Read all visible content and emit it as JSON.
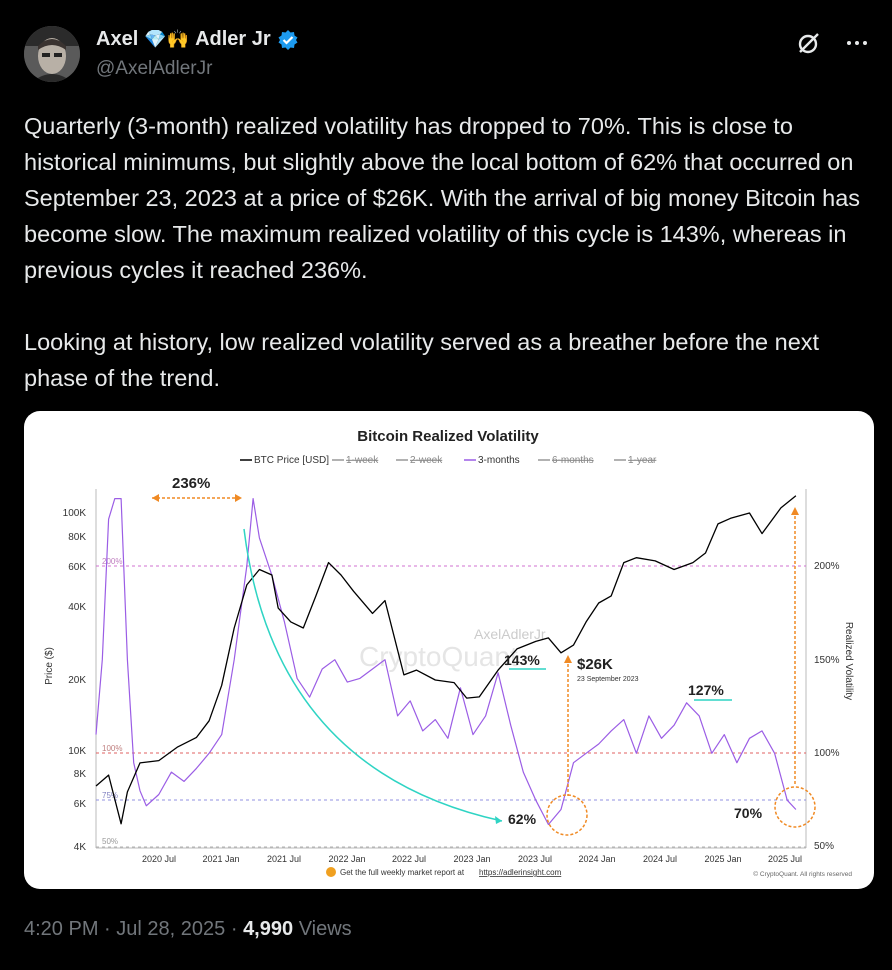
{
  "author": {
    "name": "Axel",
    "name_emoji": "💎🙌",
    "name_suffix": "Adler Jr",
    "handle": "@AxelAdlerJr"
  },
  "icons": [
    "grok-icon",
    "more-icon",
    "verified-badge-icon"
  ],
  "tweet": {
    "text": "Quarterly (3-month) realized volatility has dropped to 70%. This is close to historical minimums, but slightly above the local bottom of 62% that occurred on September 23, 2023 at a price of $26K. With the arrival of big money Bitcoin has become slow. The maximum realized volatility of this cycle is 143%, whereas in previous cycles it reached 236%.\n\nLooking at history, low realized volatility served as a breather before the next phase of the trend."
  },
  "meta": {
    "time": "4:20 PM",
    "sep1": "·",
    "date": "Jul 28, 2025",
    "sep2": "·",
    "views_count": "4,990",
    "views_label": "Views"
  },
  "chart_data": {
    "type": "line",
    "title": "Bitcoin Realized Volatility",
    "legend": [
      "BTC Price [USD]",
      "1-week",
      "2-week",
      "3-months",
      "6-months",
      "1-year"
    ],
    "legend_placement": "top-center",
    "ylabel_left": "Price ($)",
    "ylabel_right": "Realized Volatility",
    "y_left_ticks": [
      "100K",
      "80K",
      "60K",
      "40K",
      "20K",
      "10K",
      "8K",
      "6K",
      "4K"
    ],
    "y_right_ticks": [
      "200%",
      "150%",
      "100%",
      "50%"
    ],
    "x_ticks": [
      "2020 Jul",
      "2021 Jan",
      "2021 Jul",
      "2022 Jan",
      "2022 Jul",
      "2023 Jan",
      "2023 Jul",
      "2024 Jan",
      "2024 Jul",
      "2025 Jan",
      "2025 Jul"
    ],
    "reference_lines": [
      {
        "label": "200%",
        "color": "#d070d0"
      },
      {
        "label": "100%",
        "color": "#e06060"
      },
      {
        "label": "75%",
        "color": "#9090e0"
      },
      {
        "label": "50%",
        "color": "#b0b0b0"
      }
    ],
    "annotations": [
      "236%",
      "143%",
      "$26K",
      "23 September 2023",
      "127%",
      "62%",
      "70%"
    ],
    "footer_text": "Get the full weekly market report at",
    "footer_link": "https://adlerinsight.com",
    "copyright": "© CryptoQuant. All rights reserved",
    "watermark": "AxelAdlerJr",
    "logo_text": "CryptoQuant",
    "colors": {
      "price": "#000000",
      "volatility": "#9b5de5",
      "highlight": "#2fd4c4",
      "marker": "#f08a24"
    },
    "series": [
      {
        "name": "BTC Price [USD]",
        "x": [
          2020.0,
          2020.1,
          2020.2,
          2020.25,
          2020.35,
          2020.5,
          2020.65,
          2020.8,
          2020.9,
          2021.0,
          2021.1,
          2021.2,
          2021.3,
          2021.4,
          2021.45,
          2021.55,
          2021.65,
          2021.75,
          2021.85,
          2021.95,
          2022.05,
          2022.2,
          2022.3,
          2022.45,
          2022.55,
          2022.7,
          2022.85,
          2022.95,
          2023.05,
          2023.2,
          2023.35,
          2023.5,
          2023.6,
          2023.7,
          2023.8,
          2023.9,
          2024.0,
          2024.1,
          2024.2,
          2024.3,
          2024.45,
          2024.6,
          2024.75,
          2024.85,
          2024.95,
          2025.05,
          2025.2,
          2025.3,
          2025.45,
          2025.57
        ],
        "y": [
          7200,
          8000,
          5000,
          6800,
          9000,
          9200,
          10500,
          11500,
          13500,
          19000,
          33000,
          50000,
          58000,
          55000,
          40000,
          35000,
          33000,
          45000,
          62000,
          55000,
          47000,
          38000,
          43000,
          21000,
          22000,
          20000,
          19500,
          16800,
          17000,
          22000,
          27000,
          29000,
          30000,
          26000,
          28000,
          35000,
          42000,
          45000,
          62000,
          65000,
          63000,
          58000,
          62000,
          68000,
          90000,
          95000,
          100000,
          82000,
          105000,
          118000
        ]
      },
      {
        "name": "3-months",
        "x": [
          2020.0,
          2020.05,
          2020.1,
          2020.15,
          2020.2,
          2020.25,
          2020.3,
          2020.35,
          2020.4,
          2020.5,
          2020.6,
          2020.7,
          2020.8,
          2020.9,
          2021.0,
          2021.1,
          2021.2,
          2021.25,
          2021.3,
          2021.4,
          2021.5,
          2021.6,
          2021.7,
          2021.8,
          2021.9,
          2022.0,
          2022.1,
          2022.2,
          2022.3,
          2022.4,
          2022.5,
          2022.6,
          2022.7,
          2022.8,
          2022.9,
          2023.0,
          2023.1,
          2023.2,
          2023.3,
          2023.4,
          2023.5,
          2023.6,
          2023.7,
          2023.8,
          2023.9,
          2024.0,
          2024.1,
          2024.2,
          2024.3,
          2024.4,
          2024.5,
          2024.6,
          2024.7,
          2024.8,
          2024.9,
          2025.0,
          2025.1,
          2025.2,
          2025.3,
          2025.4,
          2025.5,
          2025.57
        ],
        "y": [
          110,
          150,
          225,
          236,
          236,
          150,
          95,
          80,
          72,
          78,
          90,
          85,
          92,
          100,
          110,
          150,
          200,
          236,
          215,
          195,
          170,
          140,
          130,
          145,
          150,
          138,
          140,
          145,
          150,
          120,
          128,
          112,
          118,
          108,
          135,
          110,
          120,
          143,
          115,
          90,
          75,
          62,
          70,
          95,
          100,
          105,
          112,
          118,
          100,
          120,
          108,
          115,
          127,
          120,
          100,
          110,
          95,
          108,
          112,
          100,
          75,
          70
        ]
      }
    ]
  }
}
